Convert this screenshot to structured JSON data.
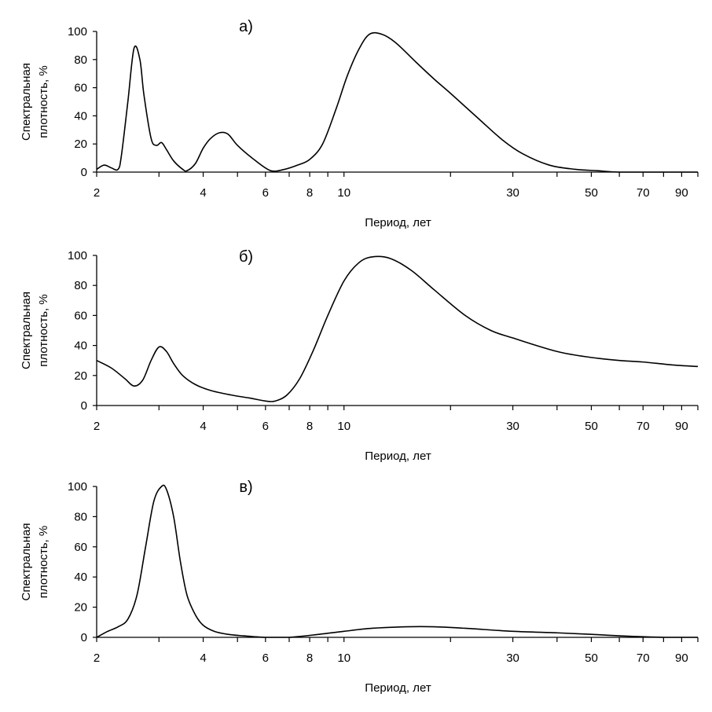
{
  "chart_data": [
    {
      "type": "line",
      "panel_label": "а)",
      "xscale": "log",
      "xlim": [
        2,
        100
      ],
      "ylim": [
        0,
        100
      ],
      "xlabel": "Период, лет",
      "ylabel_lines": [
        "Спектральная",
        "плотность, %"
      ],
      "yticks": [
        "0",
        "20",
        "40",
        "60",
        "80",
        "100"
      ],
      "xtick_labels": [
        "2",
        "4",
        "6",
        "8",
        "10",
        "30",
        "50",
        "70",
        "90"
      ],
      "series": [
        {
          "name": "а",
          "x": [
            2,
            2.1,
            2.2,
            2.3,
            2.35,
            2.45,
            2.55,
            2.65,
            2.72,
            2.85,
            2.95,
            3.05,
            3.15,
            3.3,
            3.5,
            3.6,
            3.8,
            4.0,
            4.2,
            4.45,
            4.7,
            5.0,
            5.5,
            6.2,
            6.8,
            7.4,
            8.0,
            8.7,
            9.5,
            10.2,
            11.0,
            11.8,
            12.8,
            14,
            16,
            18,
            20,
            24,
            28,
            32,
            38,
            45,
            52,
            60,
            80,
            100
          ],
          "y": [
            2,
            5,
            3,
            2,
            12,
            50,
            88,
            80,
            55,
            24,
            19,
            21,
            16,
            8,
            2,
            1,
            6,
            17,
            24,
            28,
            27,
            19,
            10,
            1,
            2,
            5,
            9,
            20,
            45,
            68,
            87,
            98,
            98,
            92,
            78,
            66,
            56,
            38,
            23,
            13,
            5,
            2,
            1,
            0,
            0,
            0
          ]
        }
      ]
    },
    {
      "type": "line",
      "panel_label": "б)",
      "xscale": "log",
      "xlim": [
        2,
        100
      ],
      "ylim": [
        0,
        100
      ],
      "xlabel": "Период, лет",
      "ylabel_lines": [
        "Спектральная",
        "плотность, %"
      ],
      "yticks": [
        "0",
        "20",
        "40",
        "60",
        "80",
        "100"
      ],
      "xtick_labels": [
        "2",
        "4",
        "6",
        "8",
        "10",
        "30",
        "50",
        "70",
        "90"
      ],
      "series": [
        {
          "name": "б",
          "x": [
            2,
            2.2,
            2.4,
            2.55,
            2.7,
            2.85,
            3.0,
            3.15,
            3.3,
            3.5,
            3.8,
            4.2,
            4.8,
            5.4,
            6.0,
            6.4,
            6.9,
            7.5,
            8.2,
            9.0,
            10.0,
            11.0,
            12.0,
            13.5,
            15.5,
            18,
            22,
            26,
            30,
            40,
            50,
            60,
            70,
            85,
            100
          ],
          "y": [
            30,
            25,
            18,
            13,
            17,
            30,
            39,
            36,
            28,
            20,
            14,
            10,
            7,
            5,
            3,
            3,
            7,
            18,
            37,
            60,
            83,
            95,
            99,
            98,
            90,
            77,
            60,
            50,
            45,
            36,
            32,
            30,
            29,
            27,
            26
          ]
        }
      ]
    },
    {
      "type": "line",
      "panel_label": "в)",
      "xscale": "log",
      "xlim": [
        2,
        100
      ],
      "ylim": [
        0,
        100
      ],
      "xlabel": "Период, лет",
      "ylabel_lines": [
        "Спектральная",
        "плотность, %"
      ],
      "yticks": [
        "0",
        "20",
        "40",
        "60",
        "80",
        "100"
      ],
      "xtick_labels": [
        "2",
        "4",
        "6",
        "8",
        "10",
        "30",
        "50",
        "70",
        "90"
      ],
      "series": [
        {
          "name": "в",
          "x": [
            2,
            2.15,
            2.3,
            2.45,
            2.6,
            2.75,
            2.9,
            3.05,
            3.15,
            3.3,
            3.45,
            3.6,
            3.8,
            4.0,
            4.3,
            4.7,
            5.2,
            6.0,
            7.0,
            8.5,
            10,
            12,
            15,
            18,
            22,
            30,
            40,
            50,
            60,
            80,
            100
          ],
          "y": [
            0,
            4,
            7,
            12,
            28,
            60,
            90,
            100,
            98,
            80,
            50,
            28,
            15,
            8,
            4,
            2,
            1,
            0,
            0,
            2,
            4,
            6,
            7,
            7,
            6,
            4,
            3,
            2,
            1,
            0,
            0
          ]
        }
      ]
    }
  ]
}
